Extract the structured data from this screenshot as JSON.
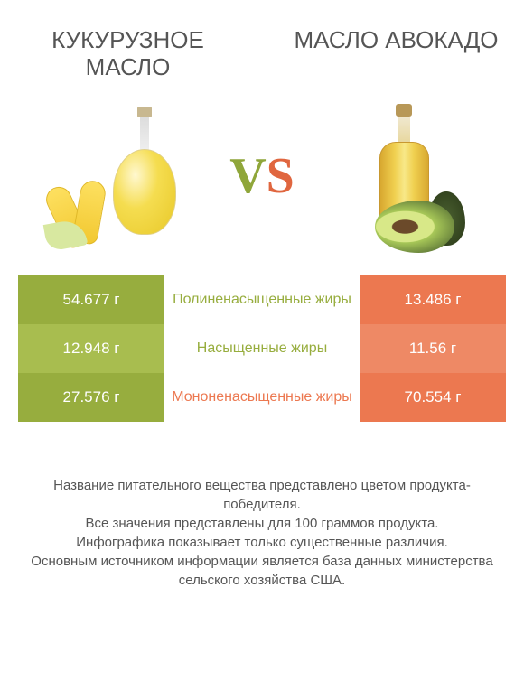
{
  "left_product": {
    "title": "Кукурузное масло"
  },
  "right_product": {
    "title": "Масло авокадо"
  },
  "vs": {
    "v": "V",
    "s": "S"
  },
  "colors": {
    "left_a": "#97ad3e",
    "left_b": "#a8bd4f",
    "right_a": "#ec7850",
    "right_b": "#ee8965",
    "mid_green": "#97ad3e",
    "mid_orange": "#ec7850"
  },
  "rows": [
    {
      "left_value": "54.677 г",
      "label": "Полиненасыщенные жиры",
      "right_value": "13.486 г",
      "winner": "left",
      "left_bg_key": "left_a",
      "right_bg_key": "right_a"
    },
    {
      "left_value": "12.948 г",
      "label": "Насыщенные жиры",
      "right_value": "11.56 г",
      "winner": "left",
      "left_bg_key": "left_b",
      "right_bg_key": "right_b"
    },
    {
      "left_value": "27.576 г",
      "label": "Мононенасыщенные жиры",
      "right_value": "70.554 г",
      "winner": "right",
      "left_bg_key": "left_a",
      "right_bg_key": "right_a"
    }
  ],
  "footer_lines": [
    "Название питательного вещества представлено цветом продукта-победителя.",
    "Все значения представлены для 100 граммов продукта.",
    "Инфографика показывает только существенные различия.",
    "Основным источником информации является база данных министерства сельского хозяйства США."
  ]
}
